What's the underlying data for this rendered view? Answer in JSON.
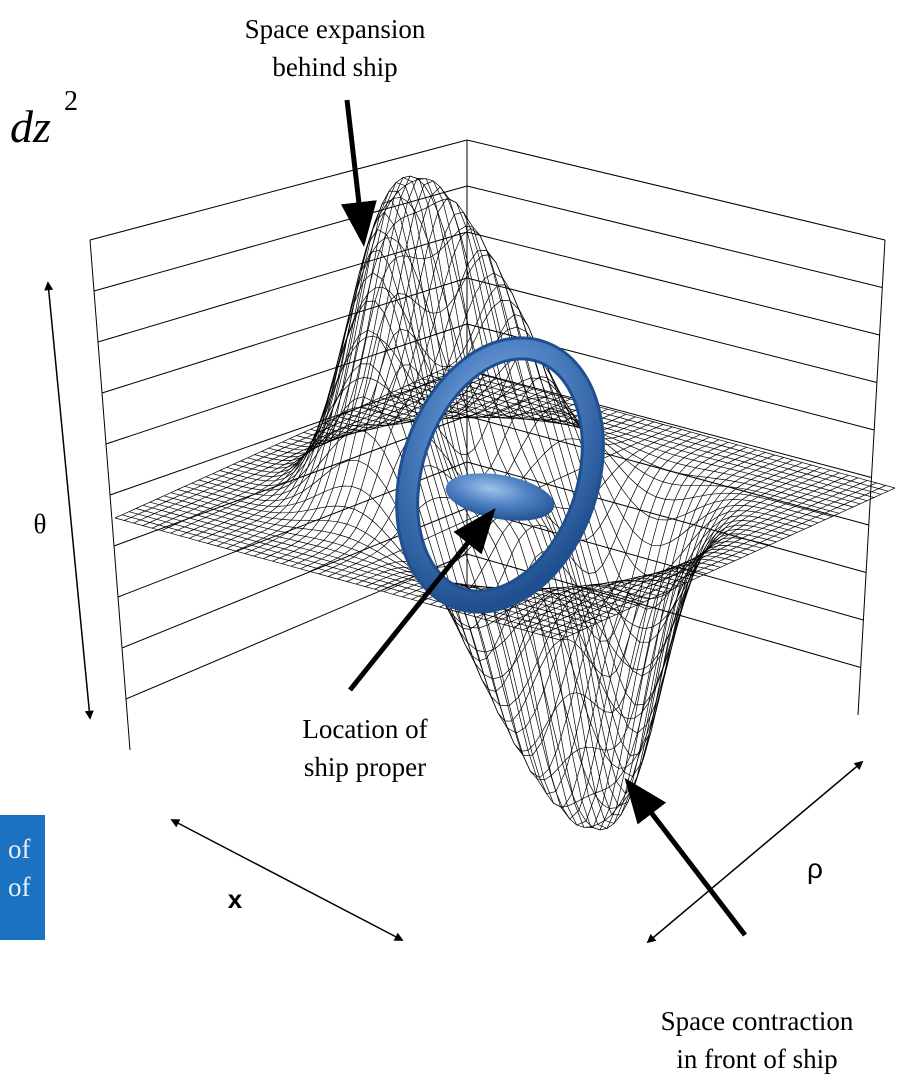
{
  "labels": {
    "expansion": [
      "Space expansion",
      "behind ship"
    ],
    "contraction": [
      "Space contraction",
      "in front of ship"
    ],
    "ship": [
      "Location of",
      "ship proper"
    ],
    "metric": {
      "base": "dz",
      "exponent": "2"
    },
    "theta": "θ",
    "x": "x",
    "rho": "ρ",
    "side_box": [
      "of",
      "of"
    ]
  }
}
